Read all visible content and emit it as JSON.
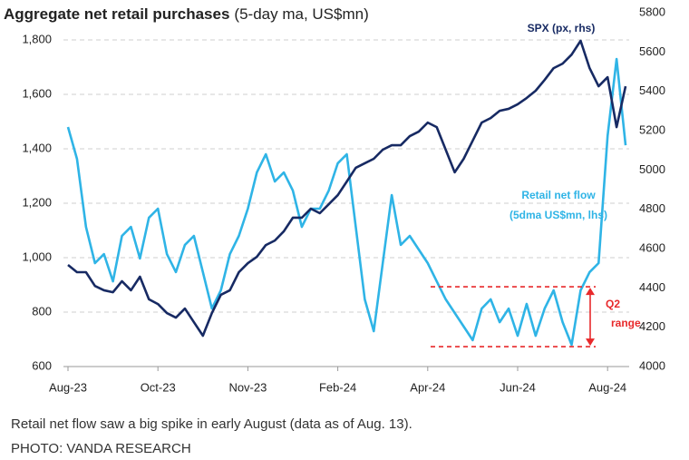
{
  "chart_data": {
    "type": "line",
    "title": "Aggregate net retail purchases",
    "subtitle": "(5-day ma, US$mn)",
    "categories": [
      "Aug-23",
      null,
      null,
      null,
      null,
      null,
      null,
      null,
      null,
      null,
      "Oct-23",
      null,
      null,
      null,
      null,
      null,
      null,
      null,
      null,
      null,
      "Nov-23",
      null,
      null,
      null,
      null,
      null,
      null,
      null,
      null,
      null,
      "Feb-24",
      null,
      null,
      null,
      null,
      null,
      null,
      null,
      null,
      null,
      "Apr-24",
      null,
      null,
      null,
      null,
      null,
      null,
      null,
      null,
      null,
      "Jun-24",
      null,
      null,
      null,
      null,
      null,
      null,
      null,
      null,
      null,
      "Aug-24",
      null,
      null
    ],
    "series": [
      {
        "name": "Retail net flow",
        "color": "#2fb4e6",
        "axis": "y",
        "values": [
          1480,
          1363,
          1113,
          980,
          1013,
          913,
          1080,
          1113,
          997,
          1147,
          1180,
          1013,
          947,
          1047,
          1080,
          947,
          813,
          880,
          1013,
          1080,
          1180,
          1313,
          1380,
          1280,
          1313,
          1247,
          1113,
          1180,
          1180,
          1247,
          1347,
          1380,
          1113,
          847,
          730,
          980,
          1230,
          1047,
          1080,
          1030,
          980,
          913,
          847,
          797,
          747,
          697,
          813,
          847,
          763,
          813,
          713,
          830,
          713,
          813,
          880,
          763,
          680,
          880,
          947,
          980,
          1447,
          1730,
          1413
        ]
      },
      {
        "name": "SPX (px, rhs)",
        "color": "#172a63",
        "axis": "y2",
        "values": [
          4517,
          4480,
          4480,
          4410,
          4388,
          4378,
          4434,
          4388,
          4457,
          4342,
          4318,
          4272,
          4249,
          4295,
          4226,
          4157,
          4272,
          4365,
          4388,
          4480,
          4526,
          4558,
          4618,
          4641,
          4688,
          4757,
          4757,
          4803,
          4780,
          4826,
          4872,
          4941,
          5011,
          5034,
          5057,
          5103,
          5126,
          5126,
          5172,
          5195,
          5241,
          5218,
          5103,
          4988,
          5057,
          5149,
          5241,
          5264,
          5301,
          5311,
          5334,
          5366,
          5403,
          5458,
          5518,
          5541,
          5587,
          5657,
          5518,
          5426,
          5472,
          5218,
          5426
        ]
      }
    ],
    "series_note": "(5dma US$mn, lhs)",
    "ylim": [
      600,
      1900
    ],
    "yticks": [
      600,
      800,
      {
        "value": 1000,
        "label": "1,000"
      },
      {
        "value": 1200,
        "label": "1,200"
      },
      {
        "value": 1400,
        "label": "1,400"
      },
      {
        "value": 1600,
        "label": "1,600"
      },
      {
        "value": 1800,
        "label": "1,800"
      }
    ],
    "y2lim": [
      4000,
      5800
    ],
    "y2ticks": [
      4000,
      4200,
      4400,
      4600,
      4800,
      5000,
      5200,
      5400,
      5600,
      5800
    ],
    "grid": true,
    "q2_range": {
      "lines": [
        "Q2",
        "range"
      ],
      "color": "#e8292b",
      "bounds": [
        893,
        673
      ]
    },
    "caption": [
      "Retail net flow saw a big spike in early August (data as of Aug. 13).",
      "PHOTO: VANDA RESEARCH"
    ]
  }
}
